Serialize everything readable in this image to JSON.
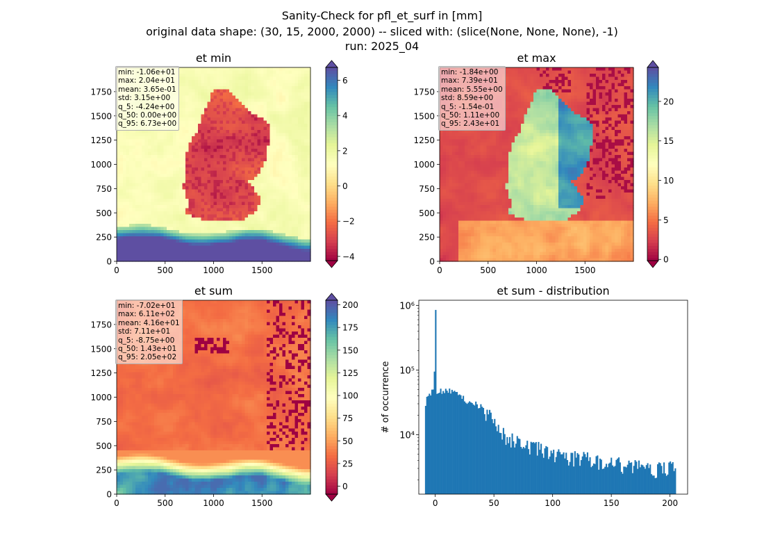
{
  "figure": {
    "title_lines": [
      "Sanity-Check for pfl_et_surf in [mm]",
      "original data shape: (30, 15, 2000, 2000) -- sliced with: (slice(None, None, None), -1)",
      "run: 2025_04"
    ]
  },
  "chart_data": [
    {
      "type": "heatmap",
      "title": "et min",
      "xlim": [
        0,
        2000
      ],
      "ylim": [
        0,
        2000
      ],
      "xticks": [
        "0",
        "500",
        "1000",
        "1500"
      ],
      "yticks": [
        "0",
        "250",
        "500",
        "750",
        "1000",
        "1250",
        "1500",
        "1750"
      ],
      "colorbar": {
        "range": [
          -4.24,
          6.73
        ],
        "ticks": [
          "−4",
          "−2",
          "0",
          "2",
          "4",
          "6"
        ],
        "extend": "both",
        "colormap": "Spectral"
      },
      "stats": [
        "min: -1.06e+01",
        "max: 2.04e+01",
        "mean: 3.65e-01",
        "std: 3.15e+00",
        "q_5: -4.24e+00",
        "q_50: 0.00e+00",
        "q_95: 6.73e+00"
      ]
    },
    {
      "type": "heatmap",
      "title": "et max",
      "xlim": [
        0,
        2000
      ],
      "ylim": [
        0,
        2000
      ],
      "xticks": [
        "0",
        "500",
        "1000",
        "1500"
      ],
      "yticks": [
        "0",
        "250",
        "500",
        "750",
        "1000",
        "1250",
        "1500",
        "1750"
      ],
      "colorbar": {
        "range": [
          -0.154,
          24.3
        ],
        "ticks": [
          "0",
          "5",
          "10",
          "15",
          "20"
        ],
        "extend": "both",
        "colormap": "Spectral"
      },
      "stats": [
        "min: -1.84e+00",
        "max: 7.39e+01",
        "mean: 5.55e+00",
        "std: 8.59e+00",
        "q_5: -1.54e-01",
        "q_50: 1.11e+00",
        "q_95: 2.43e+01"
      ]
    },
    {
      "type": "heatmap",
      "title": "et sum",
      "xlim": [
        0,
        2000
      ],
      "ylim": [
        0,
        2000
      ],
      "xticks": [
        "0",
        "500",
        "1000",
        "1500"
      ],
      "yticks": [
        "0",
        "250",
        "500",
        "750",
        "1000",
        "1250",
        "1500",
        "1750"
      ],
      "colorbar": {
        "range": [
          -8.75,
          205
        ],
        "ticks": [
          "0",
          "25",
          "50",
          "75",
          "100",
          "125",
          "150",
          "175",
          "200"
        ],
        "extend": "both",
        "colormap": "Spectral"
      },
      "stats": [
        "min: -7.02e+01",
        "max: 6.11e+02",
        "mean: 4.16e+01",
        "std: 7.11e+01",
        "q_5: -8.75e+00",
        "q_50: 1.43e+01",
        "q_95: 2.05e+02"
      ]
    },
    {
      "type": "bar",
      "title": "et sum - distribution",
      "ylabel": "# of occurrence",
      "xlabel": "",
      "yscale": "log",
      "xlim": [
        -14,
        215
      ],
      "ylim": [
        1200,
        1200000
      ],
      "xticks": [
        "0",
        "50",
        "100",
        "150",
        "200"
      ],
      "yticks": [
        "10⁴",
        "10⁵",
        "10⁶"
      ],
      "color": "#1f77b4",
      "bins": {
        "start": -8.75,
        "end": 205,
        "count": 200
      },
      "profile_x": [
        -8.75,
        -7,
        -5,
        -2,
        -1,
        0,
        1,
        3,
        6,
        10,
        15,
        20,
        25,
        30,
        35,
        40,
        45,
        50,
        55,
        60,
        70,
        80,
        90,
        100,
        110,
        120,
        130,
        140,
        150,
        160,
        170,
        180,
        190,
        200,
        205
      ],
      "profile_y": [
        29000,
        36000,
        42000,
        46000,
        40000,
        850000,
        42000,
        46000,
        48000,
        52000,
        45000,
        40000,
        35000,
        32000,
        30000,
        26000,
        21000,
        15000,
        11500,
        9500,
        7800,
        6600,
        5800,
        5300,
        4800,
        4400,
        4100,
        3900,
        3600,
        3400,
        3200,
        3100,
        3000,
        3000,
        3100
      ]
    }
  ]
}
